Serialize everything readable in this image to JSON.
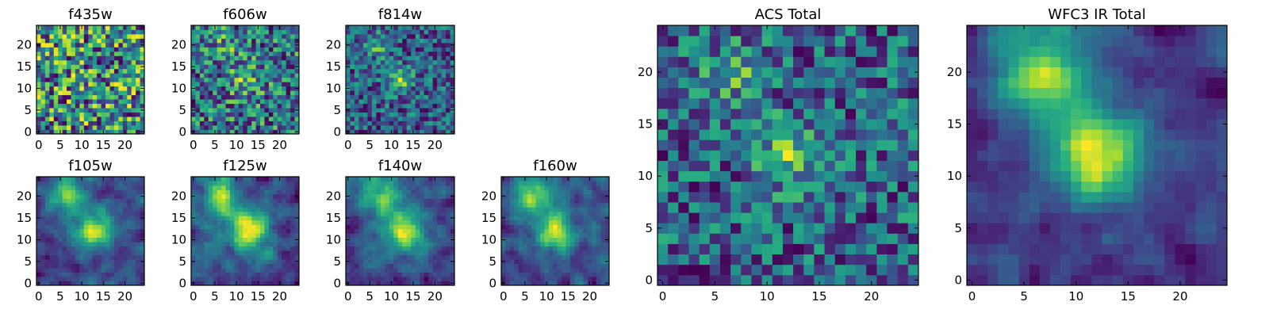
{
  "figure": {
    "background": "#ffffff",
    "colormap": "viridis",
    "colormap_stops": [
      "#440154",
      "#472c7a",
      "#3b518b",
      "#2c718e",
      "#21908d",
      "#27ad81",
      "#5cc863",
      "#aadc32",
      "#fde725"
    ]
  },
  "chart_data": [
    {
      "type": "heatmap",
      "title": "f435w",
      "grid_size": 25,
      "xlim": [
        0,
        24
      ],
      "ylim": [
        0,
        24
      ],
      "xticks": [
        0,
        5,
        10,
        15,
        20
      ],
      "yticks": [
        0,
        5,
        10,
        15,
        20
      ],
      "peaks": [],
      "noise_level": 0.3,
      "base_level": 0.75,
      "smooth": 0,
      "seed": 11
    },
    {
      "type": "heatmap",
      "title": "f606w",
      "grid_size": 25,
      "xlim": [
        0,
        24
      ],
      "ylim": [
        0,
        24
      ],
      "xticks": [
        0,
        5,
        10,
        15,
        20
      ],
      "yticks": [
        0,
        5,
        10,
        15,
        20
      ],
      "peaks": [
        {
          "x": 12,
          "y": 12,
          "sigma": 2.5,
          "amp": 0.25
        },
        {
          "x": 8,
          "y": 20,
          "sigma": 2.5,
          "amp": 0.15
        }
      ],
      "noise_level": 0.35,
      "base_level": 0.6,
      "smooth": 0,
      "seed": 23
    },
    {
      "type": "heatmap",
      "title": "f814w",
      "grid_size": 25,
      "xlim": [
        0,
        24
      ],
      "ylim": [
        0,
        24
      ],
      "xticks": [
        0,
        5,
        10,
        15,
        20
      ],
      "yticks": [
        0,
        5,
        10,
        15,
        20
      ],
      "peaks": [
        {
          "x": 12,
          "y": 12,
          "sigma": 2.0,
          "amp": 0.5
        },
        {
          "x": 7,
          "y": 20,
          "sigma": 2.0,
          "amp": 0.4
        }
      ],
      "noise_level": 0.35,
      "base_level": 0.45,
      "smooth": 0,
      "seed": 37
    },
    {
      "type": "heatmap",
      "title": "f105w",
      "grid_size": 25,
      "xlim": [
        0,
        24
      ],
      "ylim": [
        0,
        24
      ],
      "xticks": [
        0,
        5,
        10,
        15,
        20
      ],
      "yticks": [
        0,
        5,
        10,
        15,
        20
      ],
      "peaks": [
        {
          "x": 13,
          "y": 12,
          "sigma": 3.0,
          "amp": 0.6
        },
        {
          "x": 7,
          "y": 20,
          "sigma": 3.0,
          "amp": 0.45
        }
      ],
      "noise_level": 0.3,
      "base_level": 0.35,
      "smooth": 1,
      "seed": 41
    },
    {
      "type": "heatmap",
      "title": "f125w",
      "grid_size": 25,
      "xlim": [
        0,
        24
      ],
      "ylim": [
        0,
        24
      ],
      "xticks": [
        0,
        5,
        10,
        15,
        20
      ],
      "yticks": [
        0,
        5,
        10,
        15,
        20
      ],
      "peaks": [
        {
          "x": 13,
          "y": 12,
          "sigma": 3.0,
          "amp": 0.6
        },
        {
          "x": 7,
          "y": 20,
          "sigma": 3.0,
          "amp": 0.45
        }
      ],
      "noise_level": 0.3,
      "base_level": 0.35,
      "smooth": 1,
      "seed": 53
    },
    {
      "type": "heatmap",
      "title": "f140w",
      "grid_size": 25,
      "xlim": [
        0,
        24
      ],
      "ylim": [
        0,
        24
      ],
      "xticks": [
        0,
        5,
        10,
        15,
        20
      ],
      "yticks": [
        0,
        5,
        10,
        15,
        20
      ],
      "peaks": [
        {
          "x": 13,
          "y": 12,
          "sigma": 3.5,
          "amp": 0.55
        },
        {
          "x": 7,
          "y": 20,
          "sigma": 3.5,
          "amp": 0.45
        }
      ],
      "noise_level": 0.3,
      "base_level": 0.35,
      "smooth": 1,
      "seed": 67
    },
    {
      "type": "heatmap",
      "title": "f160w",
      "grid_size": 25,
      "xlim": [
        0,
        24
      ],
      "ylim": [
        0,
        24
      ],
      "xticks": [
        0,
        5,
        10,
        15,
        20
      ],
      "yticks": [
        0,
        5,
        10,
        15,
        20
      ],
      "peaks": [
        {
          "x": 12,
          "y": 12,
          "sigma": 3.0,
          "amp": 0.6
        },
        {
          "x": 7,
          "y": 20,
          "sigma": 3.0,
          "amp": 0.5
        }
      ],
      "noise_level": 0.3,
      "base_level": 0.35,
      "smooth": 1,
      "seed": 79
    },
    {
      "type": "heatmap",
      "title": "ACS Total",
      "grid_size": 25,
      "xlim": [
        0,
        24
      ],
      "ylim": [
        0,
        24
      ],
      "xticks": [
        0,
        5,
        10,
        15,
        20
      ],
      "yticks": [
        0,
        5,
        10,
        15,
        20
      ],
      "peaks": [
        {
          "x": 12,
          "y": 12,
          "sigma": 2.0,
          "amp": 0.45
        },
        {
          "x": 7,
          "y": 20,
          "sigma": 2.0,
          "amp": 0.35
        }
      ],
      "noise_level": 0.35,
      "base_level": 0.5,
      "smooth": 0,
      "seed": 97
    },
    {
      "type": "heatmap",
      "title": "WFC3 IR Total",
      "grid_size": 25,
      "xlim": [
        0,
        24
      ],
      "ylim": [
        0,
        24
      ],
      "xticks": [
        0,
        5,
        10,
        15,
        20
      ],
      "yticks": [
        0,
        5,
        10,
        15,
        20
      ],
      "peaks": [
        {
          "x": 12,
          "y": 12,
          "sigma": 3.0,
          "amp": 0.6
        },
        {
          "x": 7,
          "y": 20,
          "sigma": 3.0,
          "amp": 0.55
        }
      ],
      "noise_level": 0.22,
      "base_level": 0.3,
      "smooth": 1,
      "seed": 113
    }
  ]
}
